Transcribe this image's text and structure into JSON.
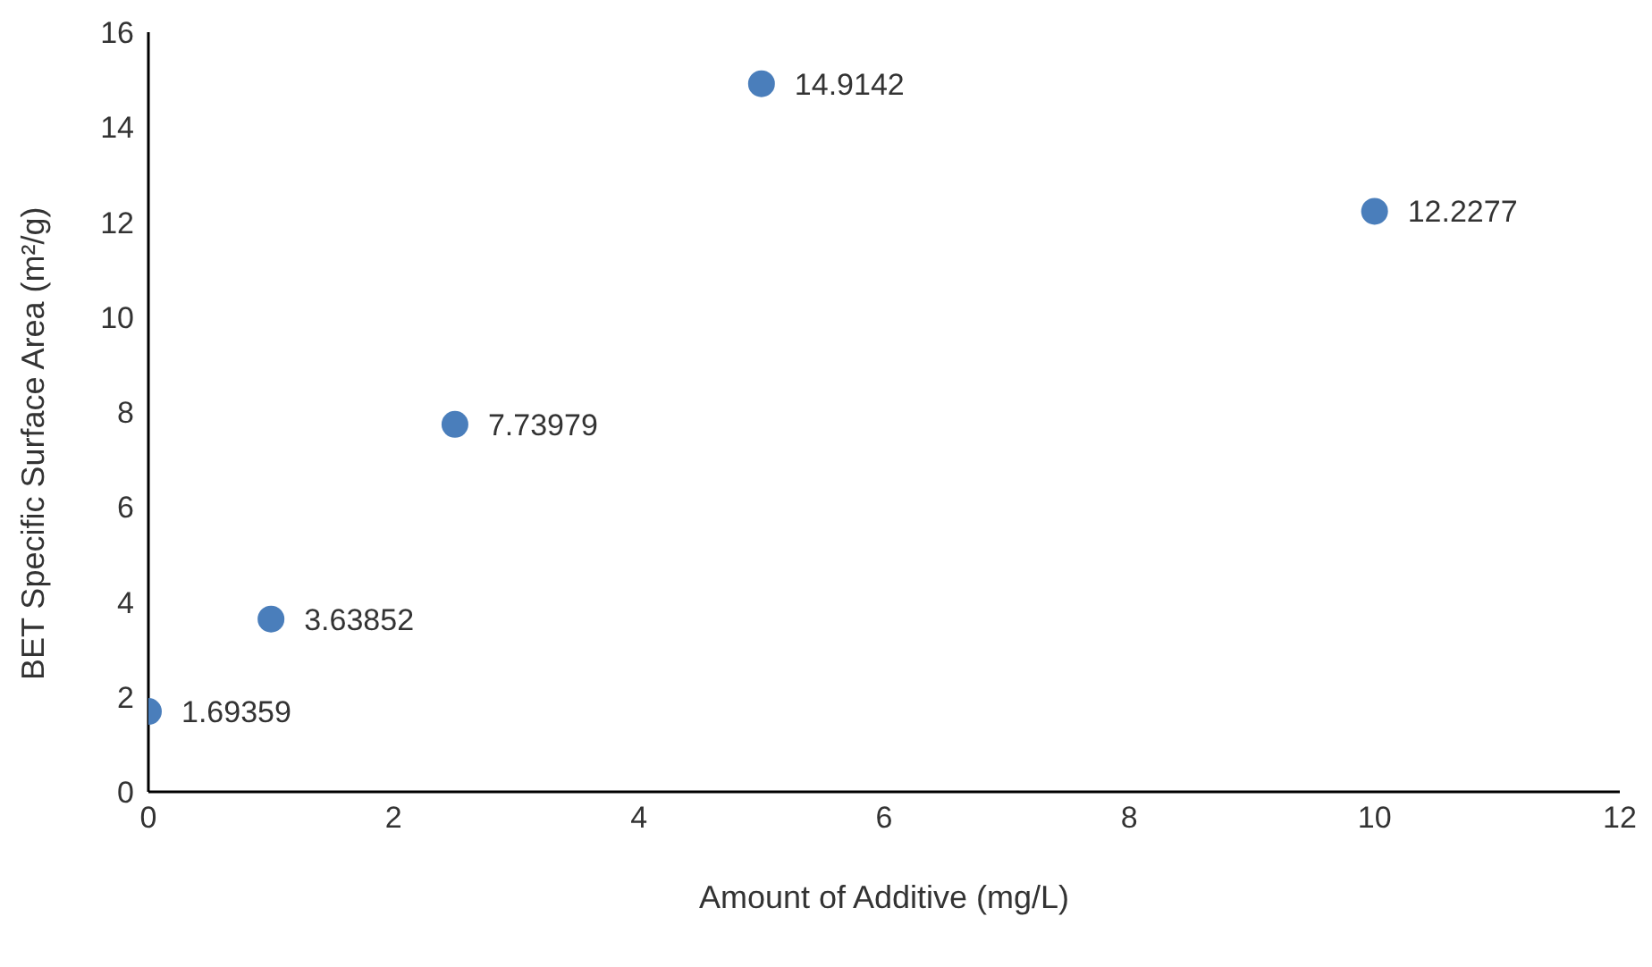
{
  "chart_data": {
    "type": "scatter",
    "xlabel": "Amount of Additive (mg/L)",
    "ylabel": "BET Specific Surface Area (m²/g)",
    "x": [
      0,
      1,
      2.5,
      5,
      10
    ],
    "series": [
      {
        "color": "#4a7ebb",
        "values": [
          1.69359,
          3.63852,
          7.73979,
          14.9142,
          12.2277
        ]
      }
    ],
    "xlim": [
      0,
      12
    ],
    "xticks": [
      0,
      2,
      4,
      6,
      8,
      10,
      12
    ],
    "ylim": [
      0,
      16
    ],
    "yticks": [
      0,
      2,
      4,
      6,
      8,
      10,
      12,
      14,
      16
    ],
    "grid": false,
    "legend": false,
    "marker": "circle",
    "data_labels": true
  }
}
